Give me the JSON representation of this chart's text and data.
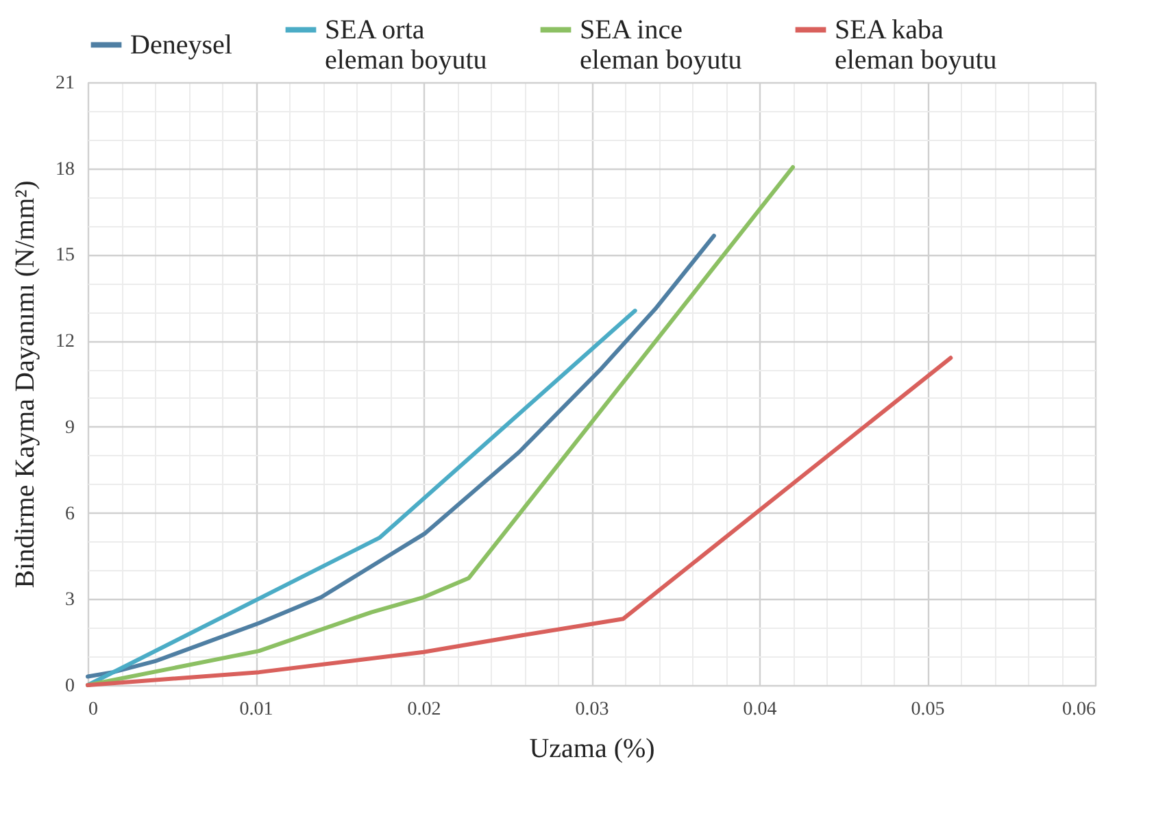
{
  "chart_data": {
    "type": "line",
    "xlabel": "Uzama (%)",
    "ylabel": "Bindirme Kayma Dayanımı (N/mm²)",
    "xlim": [
      0,
      0.06
    ],
    "xticks": [
      0,
      0.01,
      0.02,
      0.03,
      0.04,
      0.05,
      0.06
    ],
    "ylim": [
      0,
      21
    ],
    "yticks": [
      0,
      3,
      6,
      9,
      12,
      15,
      18,
      21
    ],
    "grid": true,
    "legend": "top",
    "marker": "none",
    "line_style": "solid",
    "series": [
      {
        "name": "Deneysel",
        "color": "#4f7fa3",
        "x": [
          0,
          0.0015,
          0.004,
          0.0102,
          0.0139,
          0.0174,
          0.0201,
          0.0257,
          0.0306,
          0.0338,
          0.0373
        ],
        "values": [
          0.3,
          0.45,
          0.83,
          2.16,
          3.06,
          4.32,
          5.29,
          8.12,
          11.03,
          13.1,
          15.65
        ]
      },
      {
        "name": "SEA orta eleman boyutu",
        "color": "#4bacc6",
        "x": [
          0,
          0.0174,
          0.0326
        ],
        "values": [
          0,
          5.14,
          13.04
        ]
      },
      {
        "name": "SEA ince eleman boyutu",
        "color": "#8cc063",
        "x": [
          0,
          0.0102,
          0.0169,
          0.02,
          0.0227,
          0.042
        ],
        "values": [
          0,
          1.19,
          2.54,
          3.06,
          3.73,
          18.04
        ]
      },
      {
        "name": "SEA kaba eleman boyutu",
        "color": "#d9605c",
        "x": [
          0,
          0.0102,
          0.02,
          0.0257,
          0.0319,
          0.0514
        ],
        "values": [
          0,
          0.45,
          1.15,
          1.72,
          2.31,
          11.4
        ]
      }
    ]
  }
}
